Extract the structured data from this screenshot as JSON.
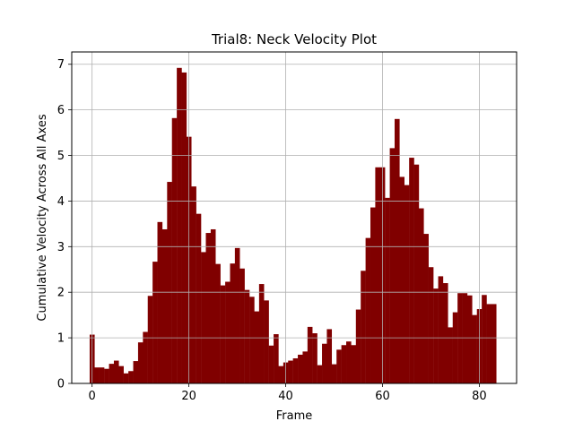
{
  "chart_data": {
    "type": "bar",
    "title": "Trial8: Neck Velocity Plot",
    "xlabel": "Frame",
    "ylabel": "Cumulative Velocity Across All Axes",
    "xlim": [
      -4.2,
      87.7
    ],
    "ylim": [
      0,
      7.27
    ],
    "xticks": [
      0,
      20,
      40,
      60,
      80
    ],
    "yticks": [
      0,
      1,
      2,
      3,
      4,
      5,
      6,
      7
    ],
    "grid": true,
    "bar_color": "#800000",
    "grid_color": "#b0b0b0",
    "x": [
      0,
      1,
      2,
      3,
      4,
      5,
      6,
      7,
      8,
      9,
      10,
      11,
      12,
      13,
      14,
      15,
      16,
      17,
      18,
      19,
      20,
      21,
      22,
      23,
      24,
      25,
      26,
      27,
      28,
      29,
      30,
      31,
      32,
      33,
      34,
      35,
      36,
      37,
      38,
      39,
      40,
      41,
      42,
      43,
      44,
      45,
      46,
      47,
      48,
      49,
      50,
      51,
      52,
      53,
      54,
      55,
      56,
      57,
      58,
      59,
      60,
      61,
      62,
      63,
      64,
      65,
      66,
      67,
      68,
      69,
      70,
      71,
      72,
      73,
      74,
      75,
      76,
      77,
      78,
      79,
      80,
      81,
      82,
      83
    ],
    "values": [
      1.07,
      0.35,
      0.35,
      0.32,
      0.43,
      0.5,
      0.38,
      0.22,
      0.27,
      0.49,
      0.9,
      1.13,
      1.92,
      2.67,
      3.54,
      3.38,
      4.42,
      5.82,
      6.92,
      6.82,
      5.41,
      4.32,
      3.72,
      2.88,
      3.3,
      3.38,
      2.62,
      2.15,
      2.23,
      2.63,
      2.97,
      2.52,
      2.05,
      1.9,
      1.58,
      2.18,
      1.82,
      0.83,
      1.08,
      0.38,
      0.46,
      0.5,
      0.55,
      0.63,
      0.7,
      1.24,
      1.1,
      0.4,
      0.87,
      1.19,
      0.42,
      0.74,
      0.84,
      0.92,
      0.84,
      1.62,
      2.47,
      3.19,
      3.86,
      4.74,
      4.74,
      4.07,
      5.16,
      5.8,
      4.53,
      4.35,
      4.95,
      4.8,
      3.84,
      3.28,
      2.55,
      2.08,
      2.35,
      2.2,
      1.23,
      1.56,
      1.98,
      1.98,
      1.93,
      1.5,
      1.63,
      1.94,
      1.74,
      1.74
    ]
  }
}
